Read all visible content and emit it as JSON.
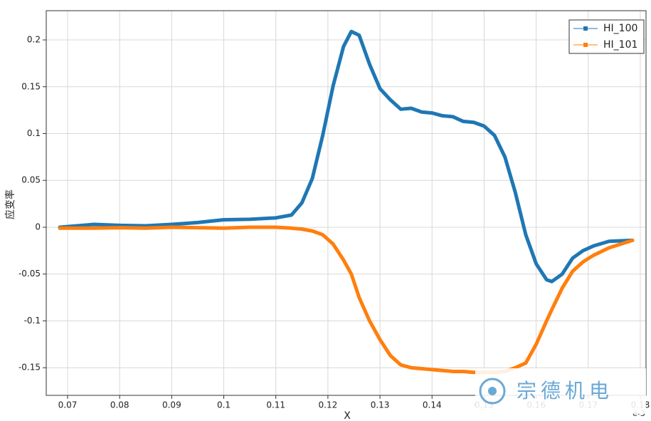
{
  "chart_data": {
    "type": "line",
    "xlabel": "X",
    "ylabel": "应变率",
    "x_exponent": "e-3",
    "x": [
      0.0685,
      0.075,
      0.08,
      0.085,
      0.09,
      0.095,
      0.1,
      0.105,
      0.11,
      0.113,
      0.115,
      0.117,
      0.119,
      0.121,
      0.123,
      0.1245,
      0.126,
      0.128,
      0.13,
      0.132,
      0.134,
      0.136,
      0.138,
      0.14,
      0.142,
      0.144,
      0.146,
      0.148,
      0.15,
      0.152,
      0.154,
      0.156,
      0.158,
      0.16,
      0.162,
      0.163,
      0.165,
      0.167,
      0.169,
      0.171,
      0.174,
      0.1785
    ],
    "series": [
      {
        "name": "HI_100",
        "color": "#1f77b4",
        "values": [
          0,
          0.003,
          0.002,
          0.0015,
          0.003,
          0.005,
          0.008,
          0.0085,
          0.01,
          0.013,
          0.026,
          0.052,
          0.098,
          0.151,
          0.193,
          0.209,
          0.205,
          0.174,
          0.148,
          0.136,
          0.126,
          0.127,
          0.123,
          0.122,
          0.119,
          0.118,
          0.113,
          0.112,
          0.108,
          0.098,
          0.075,
          0.037,
          -0.008,
          -0.039,
          -0.056,
          -0.058,
          -0.05,
          -0.033,
          -0.025,
          -0.02,
          -0.015,
          -0.014
        ]
      },
      {
        "name": "HI_101",
        "color": "#ff7f0e",
        "values": [
          -0.001,
          -0.001,
          -0.0005,
          -0.001,
          0,
          -0.0005,
          -0.001,
          0,
          0,
          -0.001,
          -0.002,
          -0.004,
          -0.008,
          -0.018,
          -0.035,
          -0.05,
          -0.075,
          -0.1,
          -0.12,
          -0.137,
          -0.147,
          -0.15,
          -0.151,
          -0.152,
          -0.153,
          -0.154,
          -0.154,
          -0.155,
          -0.155,
          -0.155,
          -0.154,
          -0.15,
          -0.145,
          -0.125,
          -0.1,
          -0.088,
          -0.065,
          -0.047,
          -0.037,
          -0.03,
          -0.022,
          -0.014
        ]
      }
    ],
    "xlim": [
      0.0659,
      0.1811
    ],
    "ylim": [
      -0.1795,
      0.2312
    ],
    "xticks": [
      0.07,
      0.08,
      0.09,
      0.1,
      0.11,
      0.12,
      0.13,
      0.14,
      0.15,
      0.16,
      0.17,
      0.18
    ],
    "yticks": [
      -0.15,
      -0.1,
      -0.05,
      0,
      0.05,
      0.1,
      0.15,
      0.2
    ],
    "grid": true,
    "legend": "upper right"
  },
  "watermark": "宗德机电"
}
